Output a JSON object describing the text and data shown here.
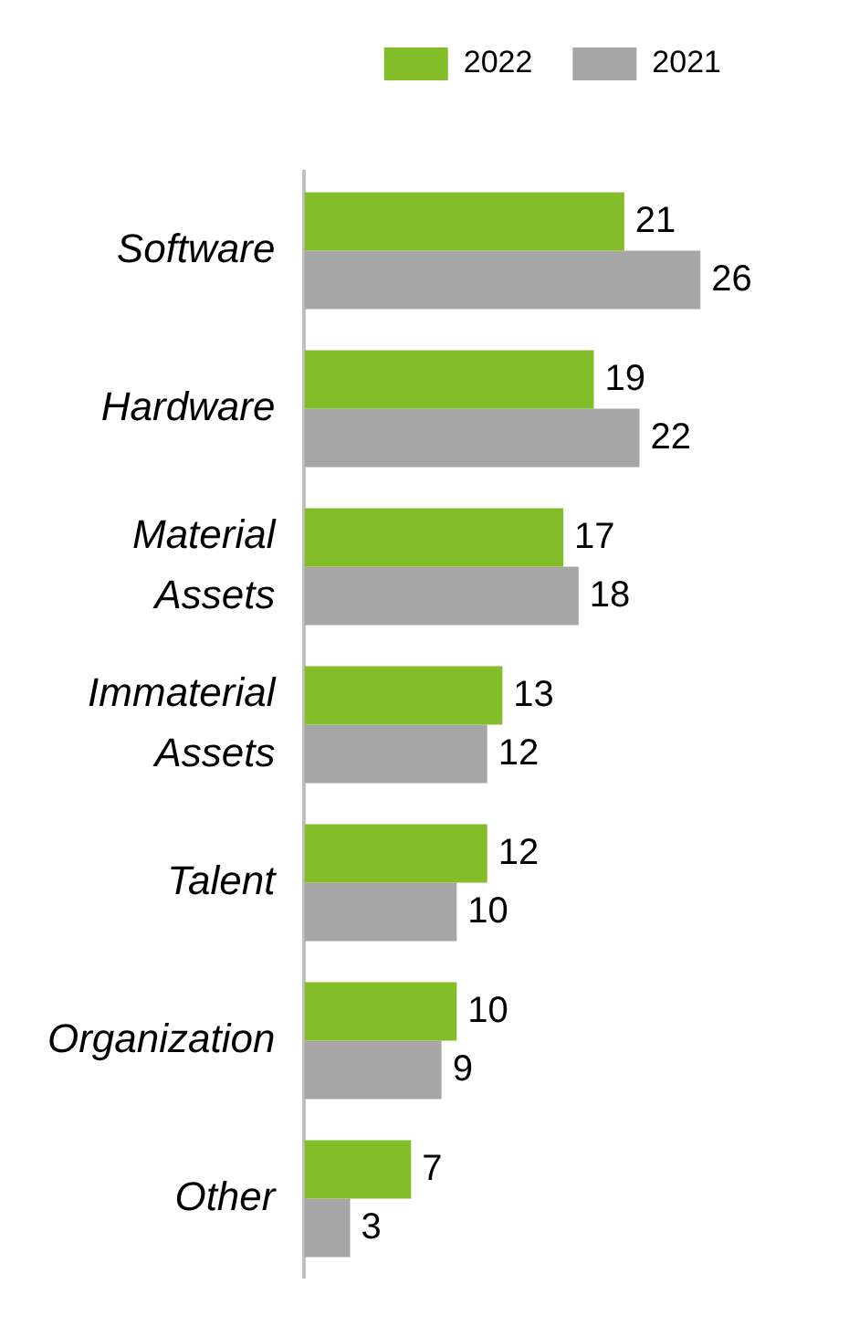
{
  "chart_data": {
    "type": "bar",
    "orientation": "horizontal",
    "categories": [
      "Software",
      "Hardware",
      "Material Assets",
      "Immaterial Assets",
      "Talent",
      "Organization",
      "Other"
    ],
    "series": [
      {
        "name": "2022",
        "color": "#84bd2a",
        "values": [
          21,
          19,
          17,
          13,
          12,
          10,
          7
        ]
      },
      {
        "name": "2021",
        "color": "#a6a6a6",
        "values": [
          26,
          22,
          18,
          12,
          10,
          9,
          3
        ]
      }
    ],
    "data_labels": true,
    "legend": "top right"
  }
}
